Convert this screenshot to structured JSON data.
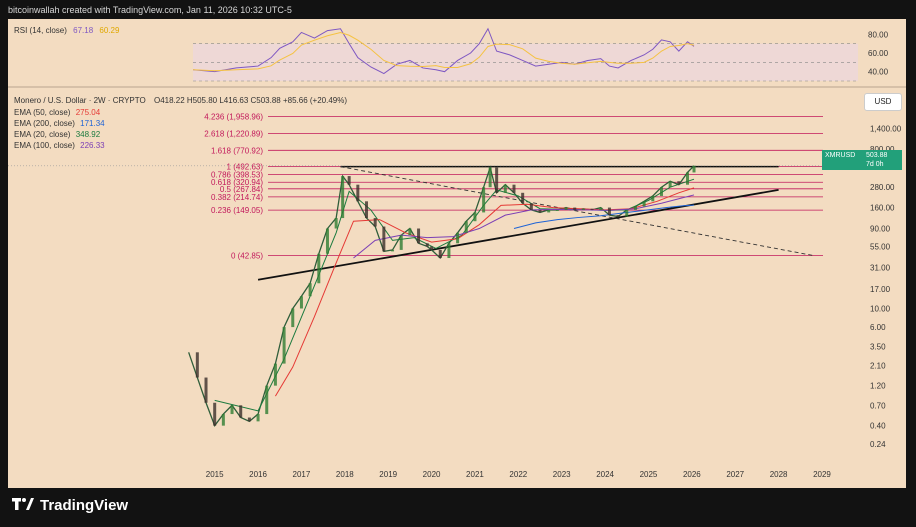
{
  "header": "bitcoinwallah created with TradingView.com, Jan 11, 2026 10:32 UTC-5",
  "rsi": {
    "label": "RSI (14, close)",
    "value": "67.18",
    "ma_value": "60.29",
    "ticks": [
      "80.00",
      "60.00",
      "40.00"
    ],
    "line_color": "#7e57c2",
    "ma_color": "#f5c242"
  },
  "legend": {
    "title": "Monero / U.S. Dollar · 2W · CRYPTO",
    "ohlc": "O418.22 H505.80 L416.63 C503.88 +85.66 (+20.49%)",
    "ema": [
      {
        "label": "EMA (50, close)",
        "value": "275.04",
        "color": "#e53935"
      },
      {
        "label": "EMA (200, close)",
        "value": "171.34",
        "color": "#1e63d6"
      },
      {
        "label": "EMA (20, close)",
        "value": "348.92",
        "color": "#1b7a3e"
      },
      {
        "label": "EMA (100, close)",
        "value": "226.33",
        "color": "#7b3fb5"
      }
    ]
  },
  "fib_levels": [
    {
      "label": "4.236 (1,958.96)",
      "price": 1958.96
    },
    {
      "label": "2.618 (1,220.89)",
      "price": 1220.89
    },
    {
      "label": "1.618 (770.92)",
      "price": 770.92
    },
    {
      "label": "1 (492.63)",
      "price": 492.63
    },
    {
      "label": "0.786 (398.53)",
      "price": 398.53
    },
    {
      "label": "0.618 (320.94)",
      "price": 320.94
    },
    {
      "label": "0.5 (267.84)",
      "price": 267.84
    },
    {
      "label": "0.382 (214.74)",
      "price": 214.74
    },
    {
      "label": "0.236 (149.05)",
      "price": 149.05
    },
    {
      "label": "0 (42.85)",
      "price": 42.85
    }
  ],
  "price_axis": {
    "unit_button": "USD",
    "ticks": [
      "1,400.00",
      "800.00",
      "280.00",
      "160.00",
      "90.00",
      "55.00",
      "31.00",
      "17.00",
      "10.00",
      "6.00",
      "3.50",
      "2.10",
      "1.20",
      "0.70",
      "0.40",
      "0.24"
    ],
    "symbol": "XMRUSD",
    "last_price": "503.88",
    "countdown": "7d 0h"
  },
  "time_axis": [
    "2015",
    "2016",
    "2017",
    "2018",
    "2019",
    "2020",
    "2021",
    "2022",
    "2023",
    "2024",
    "2025",
    "2026",
    "2027",
    "2028",
    "2029"
  ],
  "footer": {
    "brand": "TradingView"
  },
  "chart_data": {
    "type": "line",
    "title": "Monero / U.S. Dollar · 2W · CRYPTO",
    "log_scale": true,
    "xlim": [
      2014.5,
      2029.6
    ],
    "ylim": [
      0.16,
      2400
    ],
    "series": [
      {
        "name": "XMRUSD",
        "points": [
          [
            2014.4,
            3.0
          ],
          [
            2014.6,
            1.5
          ],
          [
            2014.8,
            0.75
          ],
          [
            2015.0,
            0.4
          ],
          [
            2015.2,
            0.55
          ],
          [
            2015.4,
            0.7
          ],
          [
            2015.6,
            0.5
          ],
          [
            2015.8,
            0.45
          ],
          [
            2016.0,
            0.55
          ],
          [
            2016.2,
            1.2
          ],
          [
            2016.4,
            2.2
          ],
          [
            2016.6,
            6.0
          ],
          [
            2016.8,
            10.0
          ],
          [
            2017.0,
            14.0
          ],
          [
            2017.2,
            20.0
          ],
          [
            2017.4,
            45.0
          ],
          [
            2017.6,
            90.0
          ],
          [
            2017.8,
            120.0
          ],
          [
            2017.95,
            380.0
          ],
          [
            2018.1,
            300.0
          ],
          [
            2018.3,
            190.0
          ],
          [
            2018.5,
            120.0
          ],
          [
            2018.7,
            95.0
          ],
          [
            2018.9,
            48.0
          ],
          [
            2019.1,
            50.0
          ],
          [
            2019.3,
            75.0
          ],
          [
            2019.5,
            90.0
          ],
          [
            2019.7,
            60.0
          ],
          [
            2019.9,
            55.0
          ],
          [
            2020.0,
            50.0
          ],
          [
            2020.2,
            40.0
          ],
          [
            2020.4,
            60.0
          ],
          [
            2020.6,
            80.0
          ],
          [
            2020.8,
            110.0
          ],
          [
            2021.0,
            140.0
          ],
          [
            2021.2,
            280.0
          ],
          [
            2021.35,
            480.0
          ],
          [
            2021.5,
            240.0
          ],
          [
            2021.7,
            300.0
          ],
          [
            2021.9,
            240.0
          ],
          [
            2022.1,
            180.0
          ],
          [
            2022.3,
            150.0
          ],
          [
            2022.5,
            140.0
          ],
          [
            2022.7,
            150.0
          ],
          [
            2022.9,
            150.0
          ],
          [
            2023.1,
            160.0
          ],
          [
            2023.3,
            150.0
          ],
          [
            2023.5,
            155.0
          ],
          [
            2023.7,
            150.0
          ],
          [
            2023.9,
            160.0
          ],
          [
            2024.1,
            130.0
          ],
          [
            2024.3,
            125.0
          ],
          [
            2024.5,
            150.0
          ],
          [
            2024.7,
            165.0
          ],
          [
            2024.9,
            190.0
          ],
          [
            2025.1,
            220.0
          ],
          [
            2025.3,
            280.0
          ],
          [
            2025.5,
            330.0
          ],
          [
            2025.7,
            300.0
          ],
          [
            2025.9,
            420.0
          ],
          [
            2026.05,
            503.88
          ]
        ]
      },
      {
        "name": "EMA (20, close)",
        "points": [
          [
            2015.0,
            0.8
          ],
          [
            2016.0,
            0.6
          ],
          [
            2016.6,
            2.5
          ],
          [
            2017.2,
            14
          ],
          [
            2017.8,
            80
          ],
          [
            2018.1,
            250
          ],
          [
            2018.6,
            150
          ],
          [
            2019.1,
            65
          ],
          [
            2019.6,
            70
          ],
          [
            2020.1,
            52
          ],
          [
            2020.7,
            75
          ],
          [
            2021.2,
            170
          ],
          [
            2021.5,
            260
          ],
          [
            2022.0,
            220
          ],
          [
            2022.5,
            155
          ],
          [
            2023.0,
            152
          ],
          [
            2023.5,
            152
          ],
          [
            2024.0,
            148
          ],
          [
            2024.5,
            150
          ],
          [
            2025.0,
            195
          ],
          [
            2025.5,
            280
          ],
          [
            2026.05,
            348.92
          ]
        ]
      },
      {
        "name": "EMA (50, close)",
        "points": [
          [
            2016.4,
            0.9
          ],
          [
            2016.8,
            2.0
          ],
          [
            2017.3,
            8
          ],
          [
            2017.8,
            35
          ],
          [
            2018.2,
            110
          ],
          [
            2018.8,
            115
          ],
          [
            2019.4,
            80
          ],
          [
            2020.0,
            62
          ],
          [
            2020.6,
            68
          ],
          [
            2021.1,
            100
          ],
          [
            2021.6,
            170
          ],
          [
            2022.2,
            175
          ],
          [
            2022.8,
            160
          ],
          [
            2023.4,
            155
          ],
          [
            2024.0,
            150
          ],
          [
            2024.6,
            155
          ],
          [
            2025.2,
            190
          ],
          [
            2025.7,
            240
          ],
          [
            2026.05,
            275.04
          ]
        ]
      },
      {
        "name": "EMA (100, close)",
        "points": [
          [
            2018.2,
            40
          ],
          [
            2018.7,
            65
          ],
          [
            2019.3,
            75
          ],
          [
            2019.9,
            70
          ],
          [
            2020.5,
            72
          ],
          [
            2021.1,
            90
          ],
          [
            2021.7,
            130
          ],
          [
            2022.3,
            150
          ],
          [
            2022.9,
            152
          ],
          [
            2023.5,
            150
          ],
          [
            2024.1,
            148
          ],
          [
            2024.7,
            155
          ],
          [
            2025.3,
            180
          ],
          [
            2025.8,
            210
          ],
          [
            2026.05,
            226.33
          ]
        ]
      },
      {
        "name": "EMA (200, close)",
        "points": [
          [
            2021.9,
            90
          ],
          [
            2022.4,
            105
          ],
          [
            2022.9,
            115
          ],
          [
            2023.4,
            122
          ],
          [
            2023.9,
            128
          ],
          [
            2024.4,
            138
          ],
          [
            2024.9,
            148
          ],
          [
            2025.4,
            160
          ],
          [
            2025.8,
            168
          ],
          [
            2026.05,
            171.34
          ]
        ]
      }
    ],
    "rsi": [
      [
        2014.5,
        42
      ],
      [
        2015.0,
        40
      ],
      [
        2015.5,
        44
      ],
      [
        2016.0,
        46
      ],
      [
        2016.3,
        55
      ],
      [
        2016.5,
        65
      ],
      [
        2016.8,
        72
      ],
      [
        2017.0,
        82
      ],
      [
        2017.3,
        76
      ],
      [
        2017.6,
        84
      ],
      [
        2017.9,
        86
      ],
      [
        2018.1,
        70
      ],
      [
        2018.3,
        55
      ],
      [
        2018.6,
        45
      ],
      [
        2018.9,
        38
      ],
      [
        2019.2,
        48
      ],
      [
        2019.5,
        52
      ],
      [
        2019.8,
        44
      ],
      [
        2020.1,
        42
      ],
      [
        2020.3,
        40
      ],
      [
        2020.6,
        52
      ],
      [
        2020.9,
        60
      ],
      [
        2021.1,
        70
      ],
      [
        2021.3,
        86
      ],
      [
        2021.5,
        62
      ],
      [
        2021.8,
        58
      ],
      [
        2022.1,
        52
      ],
      [
        2022.4,
        46
      ],
      [
        2022.7,
        48
      ],
      [
        2023.0,
        50
      ],
      [
        2023.3,
        48
      ],
      [
        2023.6,
        52
      ],
      [
        2023.9,
        54
      ],
      [
        2024.1,
        46
      ],
      [
        2024.3,
        44
      ],
      [
        2024.6,
        52
      ],
      [
        2024.9,
        58
      ],
      [
        2025.1,
        64
      ],
      [
        2025.3,
        74
      ],
      [
        2025.5,
        72
      ],
      [
        2025.7,
        62
      ],
      [
        2025.9,
        72
      ],
      [
        2026.05,
        67.18
      ]
    ],
    "rsi_ylim": [
      30,
      90
    ],
    "trendlines": {
      "support": [
        [
          2016.0,
          22
        ],
        [
          2028.0,
          260
        ]
      ],
      "resistance": [
        [
          2017.9,
          492.63
        ],
        [
          2028.0,
          492.63
        ]
      ],
      "descending": [
        [
          2017.9,
          492.63
        ],
        [
          2028.8,
          42.85
        ]
      ]
    }
  }
}
